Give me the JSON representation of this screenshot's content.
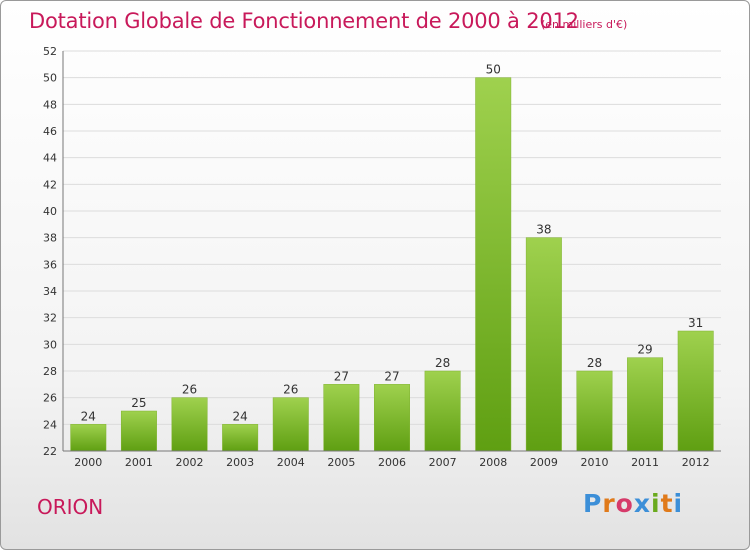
{
  "header": {
    "title": "Dotation Globale de Fonctionnement de 2000 à 2012",
    "subtitle": "(en milliers d'€)"
  },
  "footer": {
    "commune": "ORION",
    "logo_text": "Proxiti"
  },
  "colors": {
    "title": "#c8195a",
    "bar_top": "#9fd14e",
    "bar_bottom": "#5f9f12",
    "grid": "#dcdcdc",
    "logo": [
      "#3c8fd8",
      "#e07a1a",
      "#d63a6a",
      "#3c8fd8",
      "#6aaa1e",
      "#e07a1a",
      "#3c8fd8"
    ]
  },
  "chart_data": {
    "type": "bar",
    "categories": [
      "2000",
      "2001",
      "2002",
      "2003",
      "2004",
      "2005",
      "2006",
      "2007",
      "2008",
      "2009",
      "2010",
      "2011",
      "2012"
    ],
    "values": [
      24,
      25,
      26,
      24,
      26,
      27,
      27,
      28,
      50,
      38,
      28,
      29,
      31
    ],
    "title": "Dotation Globale de Fonctionnement de 2000 à 2012",
    "xlabel": "",
    "ylabel": "",
    "ylim": [
      22,
      52
    ],
    "yticks": [
      22,
      24,
      26,
      28,
      30,
      32,
      34,
      36,
      38,
      40,
      42,
      44,
      46,
      48,
      50,
      52
    ],
    "grid": true,
    "data_labels": true
  }
}
